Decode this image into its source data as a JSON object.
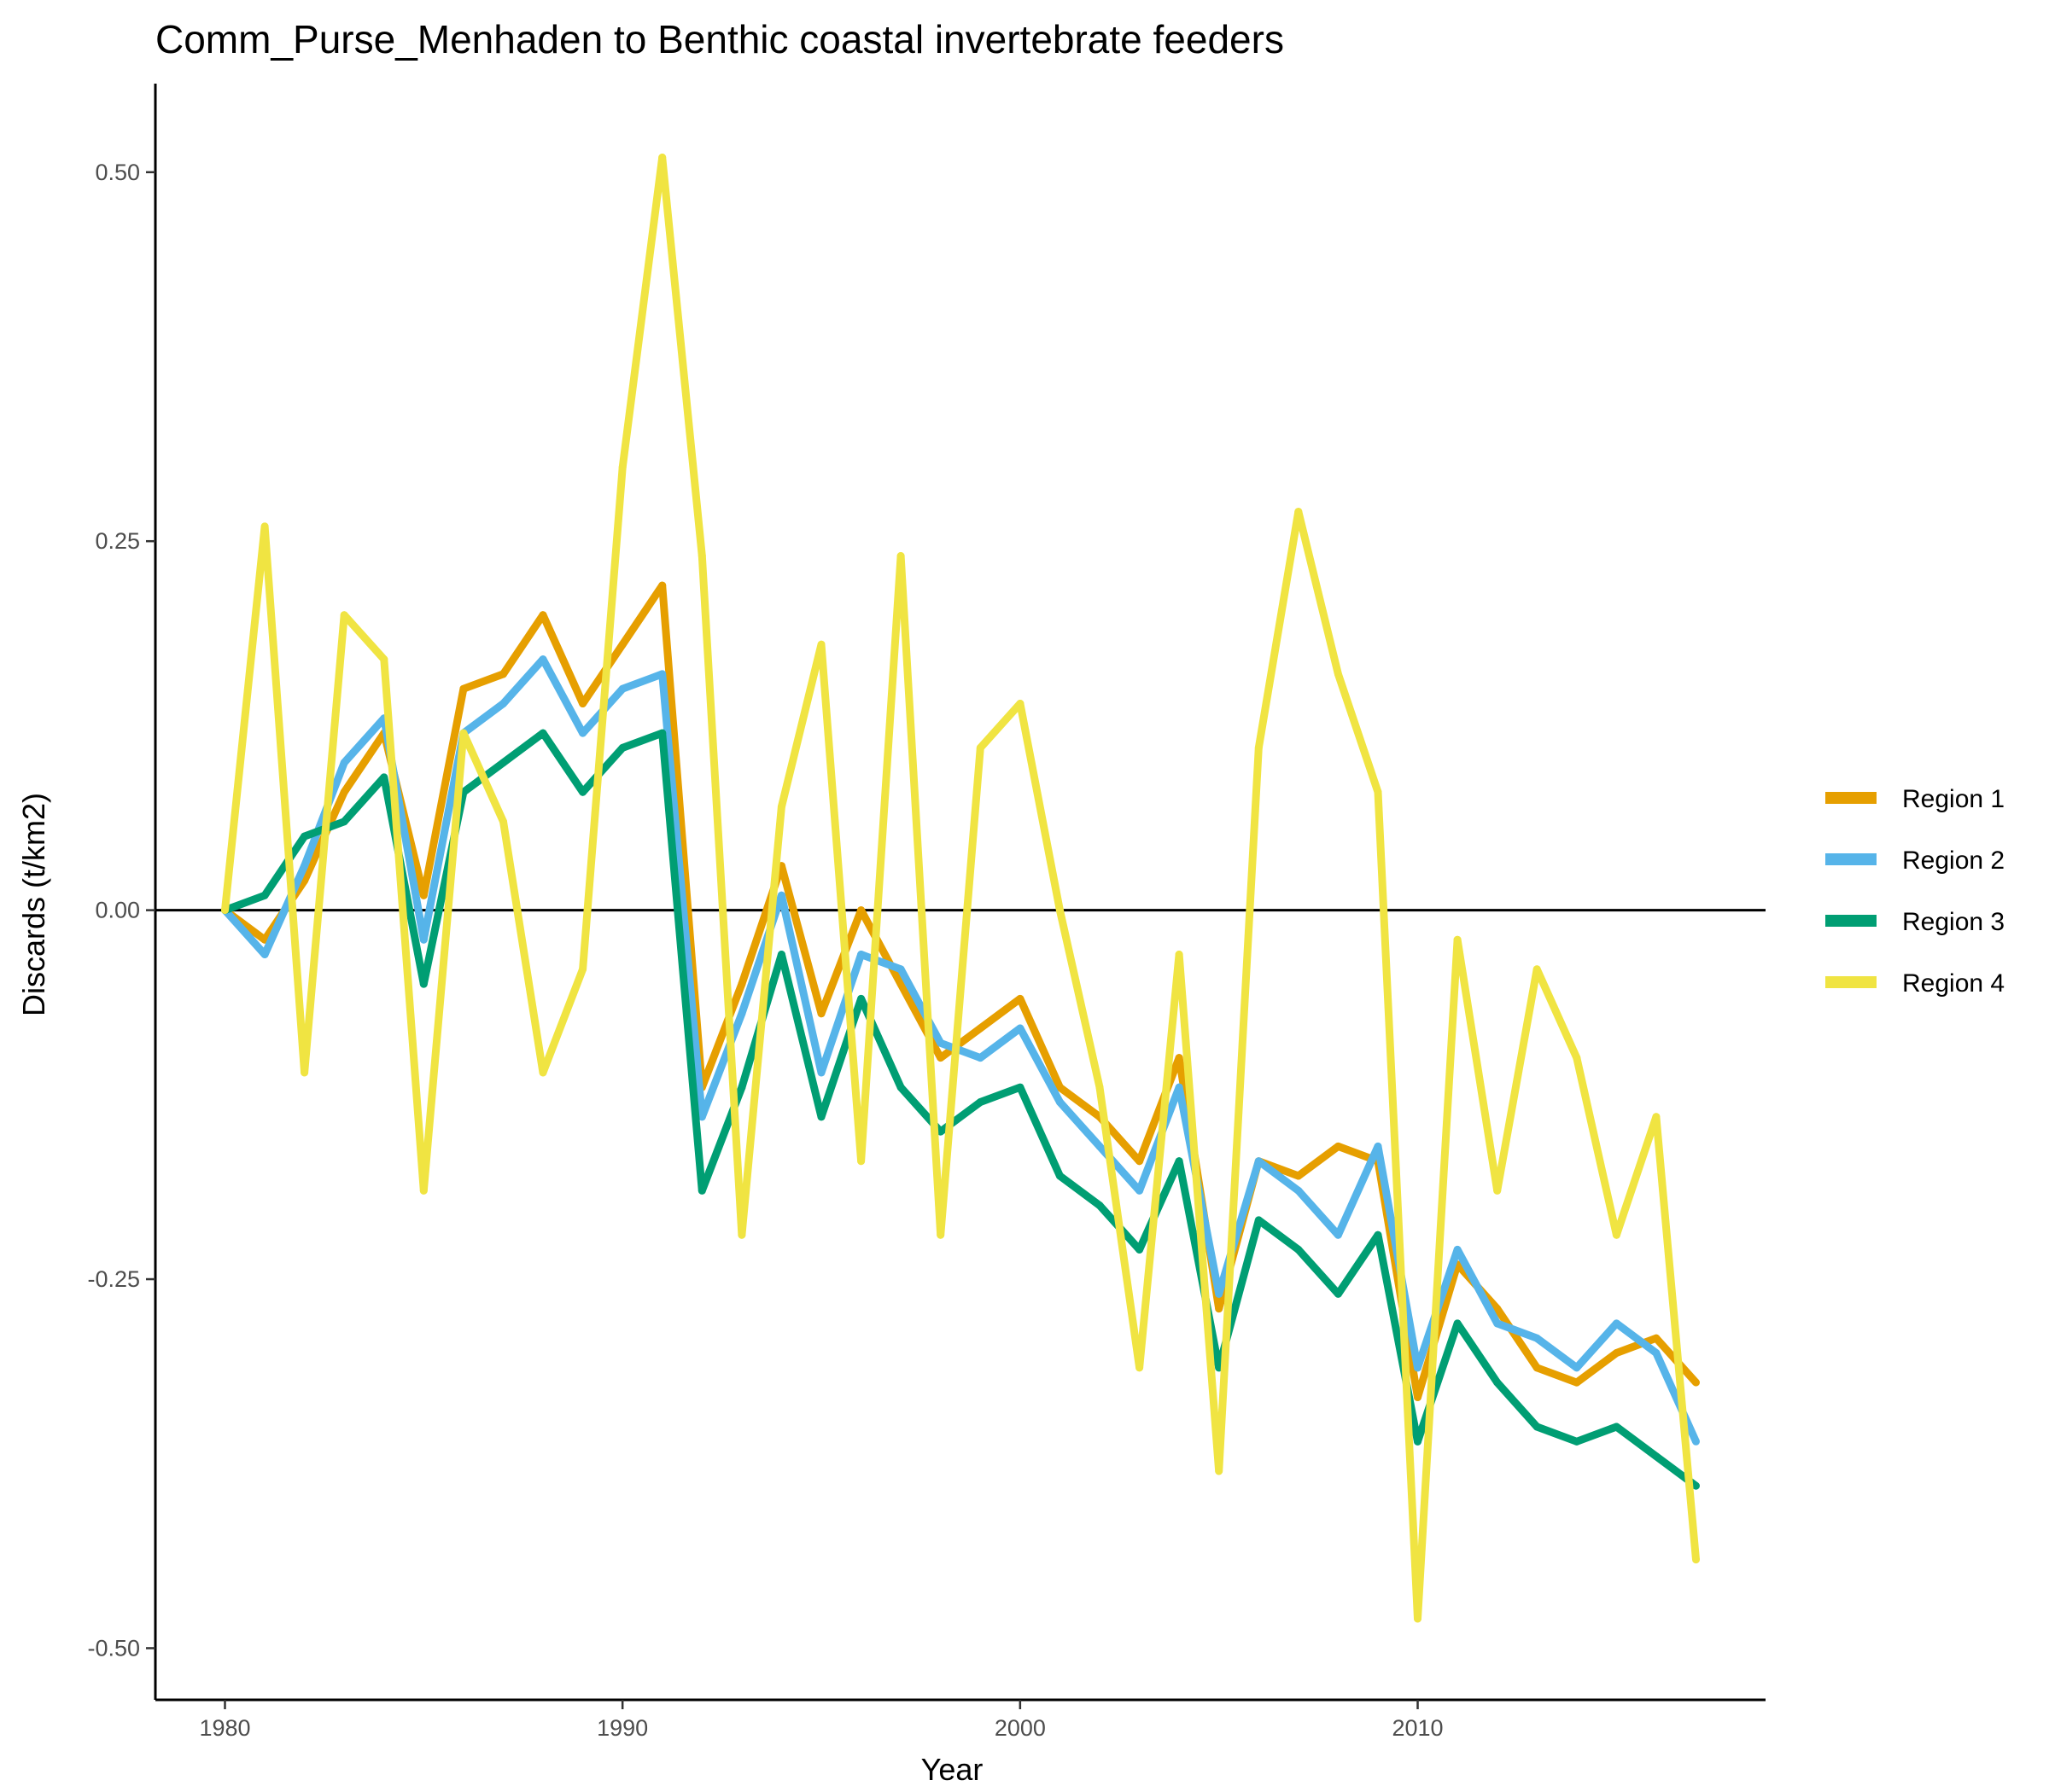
{
  "chart_data": {
    "type": "line",
    "title": "Comm_Purse_Menhaden to Benthic coastal invertebrate feeders",
    "xlabel": "Year",
    "ylabel": "Discards (t/km2)",
    "xlim": [
      1978.25,
      2018.75
    ],
    "ylim": [
      -0.535,
      0.56
    ],
    "x_ticks": [
      1980,
      1990,
      2000,
      2010
    ],
    "x_tick_labels": [
      "1980",
      "1990",
      "2000",
      "2010"
    ],
    "y_ticks": [
      -0.5,
      -0.25,
      0,
      0.25,
      0.5
    ],
    "y_tick_labels": [
      "-0.50",
      "-0.25",
      "0.00",
      "0.25",
      "0.50"
    ],
    "reference_line_y": 0,
    "grid": false,
    "legend_position": "right",
    "x": [
      1980,
      1981,
      1982,
      1983,
      1984,
      1985,
      1986,
      1987,
      1988,
      1989,
      1990,
      1991,
      1992,
      1993,
      1994,
      1995,
      1996,
      1997,
      1998,
      1999,
      2000,
      2001,
      2002,
      2003,
      2004,
      2005,
      2006,
      2007,
      2008,
      2009,
      2010,
      2011,
      2012,
      2013,
      2014,
      2015,
      2016,
      2017
    ],
    "series": [
      {
        "name": "Region 1",
        "color": "#E69F00",
        "values": [
          0.0,
          -0.02,
          0.02,
          0.08,
          0.12,
          0.01,
          0.15,
          0.16,
          0.2,
          0.14,
          0.18,
          0.22,
          -0.12,
          -0.05,
          0.03,
          -0.07,
          0.0,
          -0.05,
          -0.1,
          -0.08,
          -0.06,
          -0.12,
          -0.14,
          -0.17,
          -0.1,
          -0.27,
          -0.17,
          -0.18,
          -0.16,
          -0.17,
          -0.33,
          -0.24,
          -0.27,
          -0.31,
          -0.32,
          -0.3,
          -0.29,
          -0.32
        ]
      },
      {
        "name": "Region 2",
        "color": "#56B4E9",
        "values": [
          0.0,
          -0.03,
          0.03,
          0.1,
          0.13,
          -0.02,
          0.12,
          0.14,
          0.17,
          0.12,
          0.15,
          0.16,
          -0.14,
          -0.07,
          0.01,
          -0.11,
          -0.03,
          -0.04,
          -0.09,
          -0.1,
          -0.08,
          -0.13,
          -0.16,
          -0.19,
          -0.12,
          -0.26,
          -0.17,
          -0.19,
          -0.22,
          -0.16,
          -0.31,
          -0.23,
          -0.28,
          -0.29,
          -0.31,
          -0.28,
          -0.3,
          -0.36
        ]
      },
      {
        "name": "Region 3",
        "color": "#009E73",
        "values": [
          0.0,
          0.01,
          0.05,
          0.06,
          0.09,
          -0.05,
          0.08,
          0.1,
          0.12,
          0.08,
          0.11,
          0.12,
          -0.19,
          -0.12,
          -0.03,
          -0.14,
          -0.06,
          -0.12,
          -0.15,
          -0.13,
          -0.12,
          -0.18,
          -0.2,
          -0.23,
          -0.17,
          -0.31,
          -0.21,
          -0.23,
          -0.26,
          -0.22,
          -0.36,
          -0.28,
          -0.32,
          -0.35,
          -0.36,
          -0.35,
          -0.37,
          -0.39
        ]
      },
      {
        "name": "Region 4",
        "color": "#F0E442",
        "values": [
          0.0,
          0.26,
          -0.11,
          0.2,
          0.17,
          -0.19,
          0.12,
          0.06,
          -0.11,
          -0.04,
          0.3,
          0.51,
          0.24,
          -0.22,
          0.07,
          0.18,
          -0.17,
          0.24,
          -0.22,
          0.11,
          0.14,
          0.0,
          -0.12,
          -0.31,
          -0.03,
          -0.38,
          0.11,
          0.27,
          0.16,
          0.08,
          -0.48,
          -0.02,
          -0.19,
          -0.04,
          -0.1,
          -0.22,
          -0.14,
          -0.44
        ]
      }
    ]
  }
}
